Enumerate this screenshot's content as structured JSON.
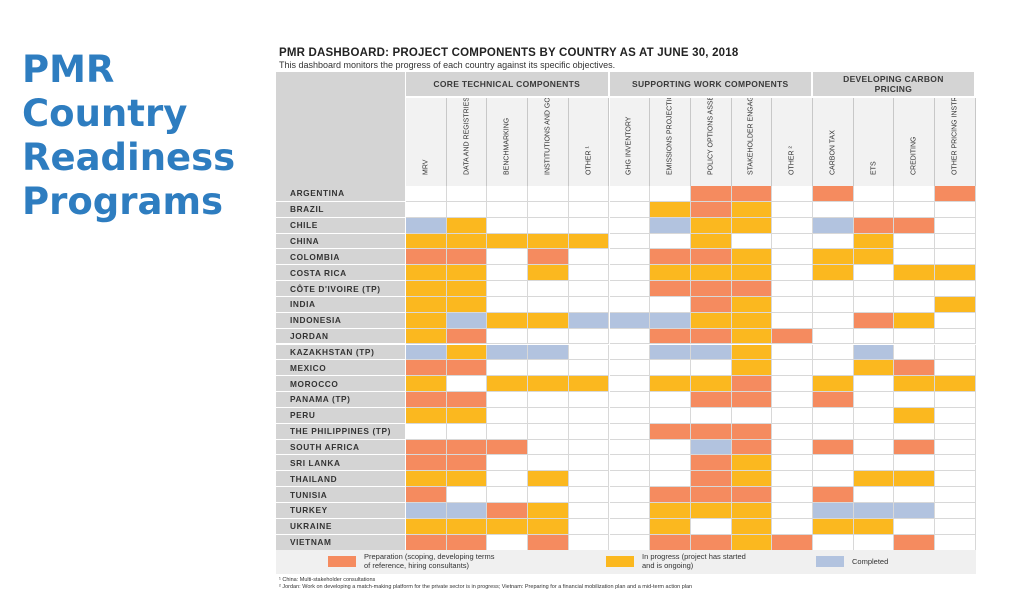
{
  "slide_title": [
    "PMR",
    "Country",
    "Readiness",
    "Programs"
  ],
  "dashboard": {
    "title": "PMR DASHBOARD: PROJECT COMPONENTS BY COUNTRY AS AT JUNE 30, 2018",
    "subtitle": "This dashboard monitors the progress of each country against its specific objectives."
  },
  "colors": {
    "P": "#f58b5f",
    "I": "#fbb81f",
    "C": "#b2c3df",
    "E": "#ffffff"
  },
  "groups": [
    {
      "label": "CORE TECHNICAL COMPONENTS",
      "span": 5
    },
    {
      "label": "SUPPORTING WORK COMPONENTS",
      "span": 5
    },
    {
      "label": "DEVELOPING CARBON PRICING",
      "span": 4
    }
  ],
  "columns": [
    "MRV",
    "DATA AND REGISTRIES",
    "BENCHMARKING",
    "INSTITUTIONS AND GOVERNANCE",
    "OTHER ¹",
    "GHG INVENTORY",
    "EMISSIONS PROJECTIONS/ NDC DEVELOPMENT",
    "POLICY OPTIONS ASSESSMENT AND/OR POLICY INTERACTION",
    "STAKEHOLDER ENGAGEMENT/ COMMUNICATIONS",
    "OTHER ²",
    "CARBON TAX",
    "ETS",
    "CREDITING",
    "OTHER PRICING INSTRUMENTS"
  ],
  "rows": [
    {
      "country": "ARGENTINA",
      "cells": [
        "E",
        "E",
        "E",
        "E",
        "E",
        "E",
        "E",
        "P",
        "P",
        "E",
        "P",
        "E",
        "E",
        "P"
      ]
    },
    {
      "country": "BRAZIL",
      "cells": [
        "E",
        "E",
        "E",
        "E",
        "E",
        "E",
        "I",
        "P",
        "I",
        "E",
        "E",
        "E",
        "E",
        "E"
      ]
    },
    {
      "country": "CHILE",
      "cells": [
        "C",
        "I",
        "E",
        "E",
        "E",
        "E",
        "C",
        "I",
        "I",
        "E",
        "C",
        "P",
        "P",
        "E"
      ]
    },
    {
      "country": "CHINA",
      "cells": [
        "I",
        "I",
        "I",
        "I",
        "I",
        "E",
        "E",
        "I",
        "E",
        "E",
        "E",
        "I",
        "E",
        "E"
      ]
    },
    {
      "country": "COLOMBIA",
      "cells": [
        "P",
        "P",
        "E",
        "P",
        "E",
        "E",
        "P",
        "P",
        "I",
        "E",
        "I",
        "I",
        "E",
        "E"
      ]
    },
    {
      "country": "COSTA RICA",
      "cells": [
        "I",
        "I",
        "E",
        "I",
        "E",
        "E",
        "I",
        "I",
        "I",
        "E",
        "I",
        "E",
        "I",
        "I"
      ]
    },
    {
      "country": "CÔTE D'IVOIRE (TP)",
      "cells": [
        "I",
        "I",
        "E",
        "E",
        "E",
        "E",
        "P",
        "P",
        "P",
        "E",
        "E",
        "E",
        "E",
        "E"
      ]
    },
    {
      "country": "INDIA",
      "cells": [
        "I",
        "I",
        "E",
        "E",
        "E",
        "E",
        "E",
        "P",
        "I",
        "E",
        "E",
        "E",
        "E",
        "I"
      ]
    },
    {
      "country": "INDONESIA",
      "cells": [
        "I",
        "C",
        "I",
        "I",
        "C",
        "C",
        "C",
        "I",
        "I",
        "E",
        "E",
        "P",
        "I",
        "E"
      ]
    },
    {
      "country": "JORDAN",
      "cells": [
        "I",
        "P",
        "E",
        "E",
        "E",
        "E",
        "P",
        "P",
        "I",
        "P",
        "E",
        "E",
        "E",
        "E"
      ]
    },
    {
      "country": "KAZAKHSTAN (TP)",
      "cells": [
        "C",
        "I",
        "C",
        "C",
        "E",
        "E",
        "C",
        "C",
        "I",
        "E",
        "E",
        "C",
        "E",
        "E"
      ]
    },
    {
      "country": "MEXICO",
      "cells": [
        "P",
        "P",
        "E",
        "E",
        "E",
        "E",
        "E",
        "E",
        "I",
        "E",
        "E",
        "I",
        "P",
        "E"
      ]
    },
    {
      "country": "MOROCCO",
      "cells": [
        "I",
        "E",
        "I",
        "I",
        "I",
        "E",
        "I",
        "I",
        "P",
        "E",
        "I",
        "E",
        "I",
        "I"
      ]
    },
    {
      "country": "PANAMA (TP)",
      "cells": [
        "P",
        "P",
        "E",
        "E",
        "E",
        "E",
        "E",
        "P",
        "P",
        "E",
        "P",
        "E",
        "E",
        "E"
      ]
    },
    {
      "country": "PERU",
      "cells": [
        "I",
        "I",
        "E",
        "E",
        "E",
        "E",
        "E",
        "E",
        "E",
        "E",
        "E",
        "E",
        "I",
        "E"
      ]
    },
    {
      "country": "THE PHILIPPINES (TP)",
      "cells": [
        "E",
        "E",
        "E",
        "E",
        "E",
        "E",
        "P",
        "P",
        "P",
        "E",
        "E",
        "E",
        "E",
        "E"
      ]
    },
    {
      "country": "SOUTH AFRICA",
      "cells": [
        "P",
        "P",
        "P",
        "E",
        "E",
        "E",
        "E",
        "C",
        "P",
        "E",
        "P",
        "E",
        "P",
        "E"
      ]
    },
    {
      "country": "SRI LANKA",
      "cells": [
        "P",
        "P",
        "E",
        "E",
        "E",
        "E",
        "E",
        "P",
        "I",
        "E",
        "E",
        "E",
        "E",
        "E"
      ]
    },
    {
      "country": "THAILAND",
      "cells": [
        "I",
        "I",
        "E",
        "I",
        "E",
        "E",
        "E",
        "P",
        "I",
        "E",
        "E",
        "I",
        "I",
        "E"
      ]
    },
    {
      "country": "TUNISIA",
      "cells": [
        "P",
        "E",
        "E",
        "E",
        "E",
        "E",
        "P",
        "P",
        "P",
        "E",
        "P",
        "E",
        "E",
        "E"
      ]
    },
    {
      "country": "TURKEY",
      "cells": [
        "C",
        "C",
        "P",
        "I",
        "E",
        "E",
        "I",
        "I",
        "I",
        "E",
        "C",
        "C",
        "C",
        "E"
      ]
    },
    {
      "country": "UKRAINE",
      "cells": [
        "I",
        "I",
        "I",
        "I",
        "E",
        "E",
        "I",
        "E",
        "I",
        "E",
        "I",
        "I",
        "E",
        "E"
      ]
    },
    {
      "country": "VIETNAM",
      "cells": [
        "P",
        "P",
        "E",
        "P",
        "E",
        "E",
        "P",
        "P",
        "I",
        "P",
        "E",
        "E",
        "P",
        "E"
      ]
    }
  ],
  "legend": [
    {
      "code": "P",
      "text_line1": "Preparation (scoping, developing terms",
      "text_line2": "of reference, hiring consultants)"
    },
    {
      "code": "I",
      "text_line1": "In progress (project has started",
      "text_line2": "and is ongoing)"
    },
    {
      "code": "C",
      "text_line1": "Completed",
      "text_line2": ""
    }
  ],
  "footnotes": [
    "¹ China: Multi-stakeholder consultations",
    "² Jordan: Work on developing a match-making platform for the private sector is in progress; Vietnam: Preparing for a financial mobilization plan and a mid-term action plan"
  ]
}
